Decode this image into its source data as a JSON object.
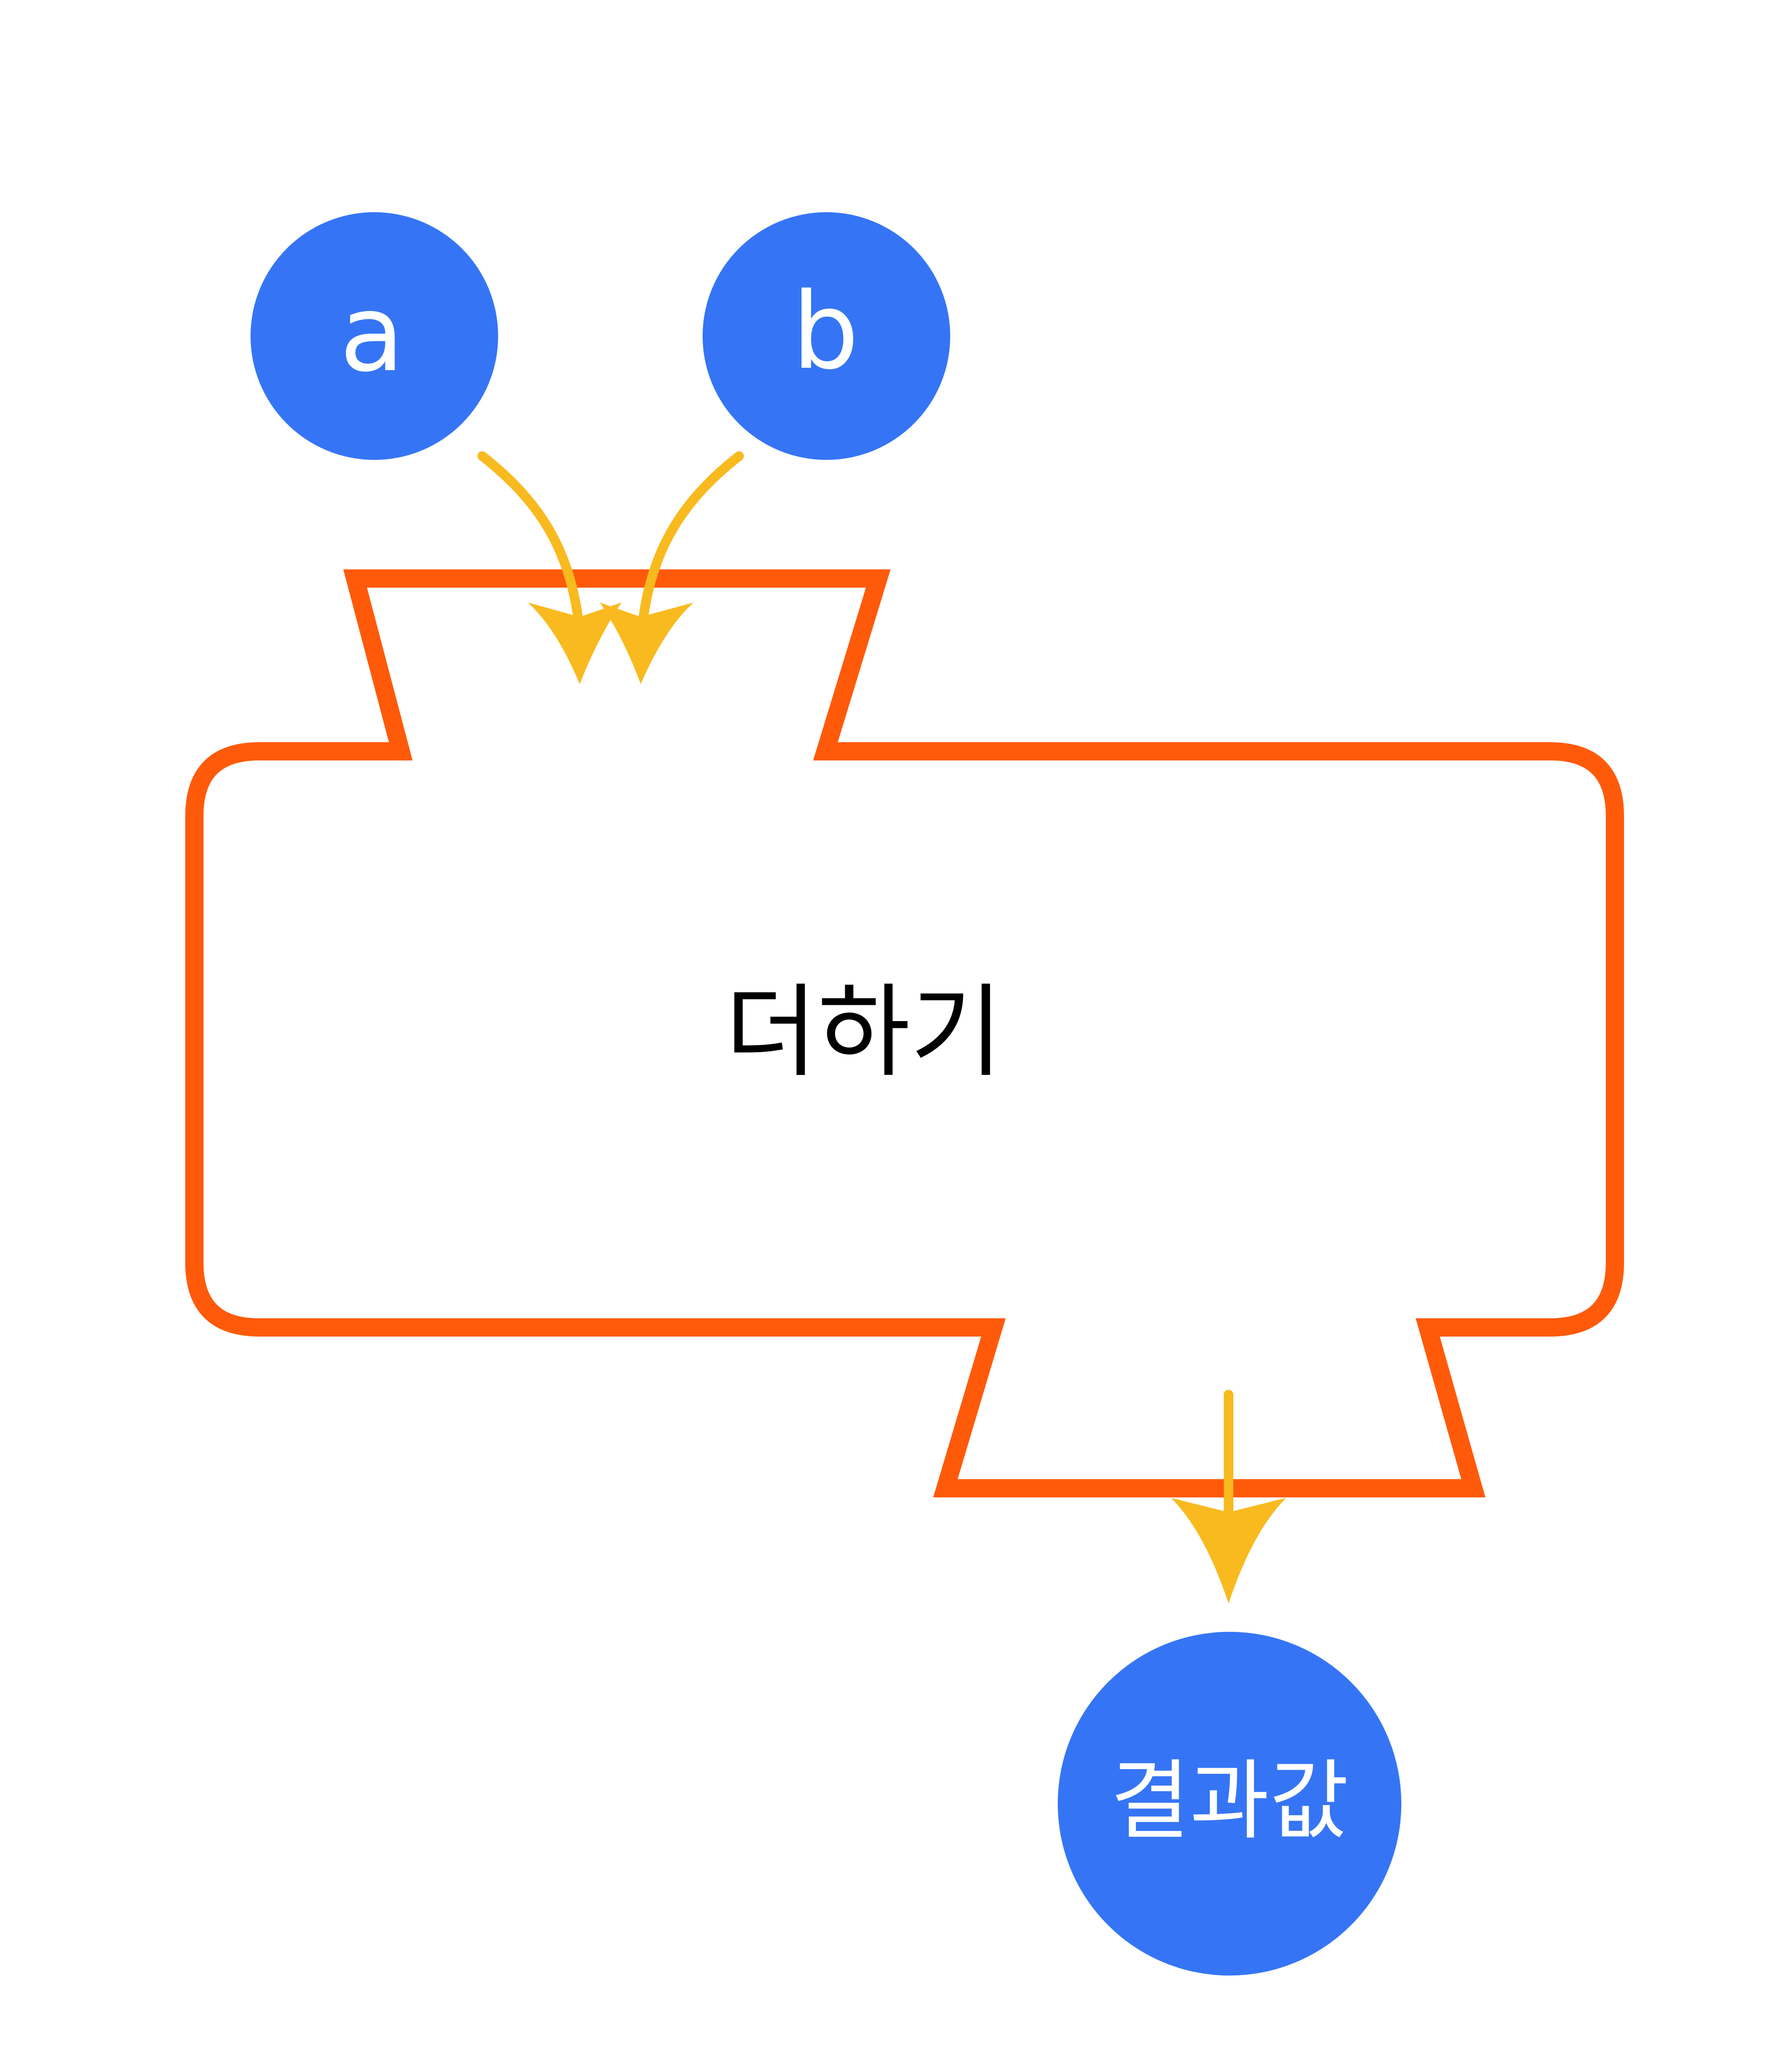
{
  "function_box": {
    "label": "더하기",
    "outline_color": "#FF5A0A"
  },
  "inputs": [
    {
      "label": "a"
    },
    {
      "label": "b"
    }
  ],
  "output": {
    "label": "결과값"
  },
  "colors": {
    "node_fill": "#3575F5",
    "node_text": "#FFFFFF",
    "arrow": "#F8BA1E",
    "function_text": "#000000"
  }
}
